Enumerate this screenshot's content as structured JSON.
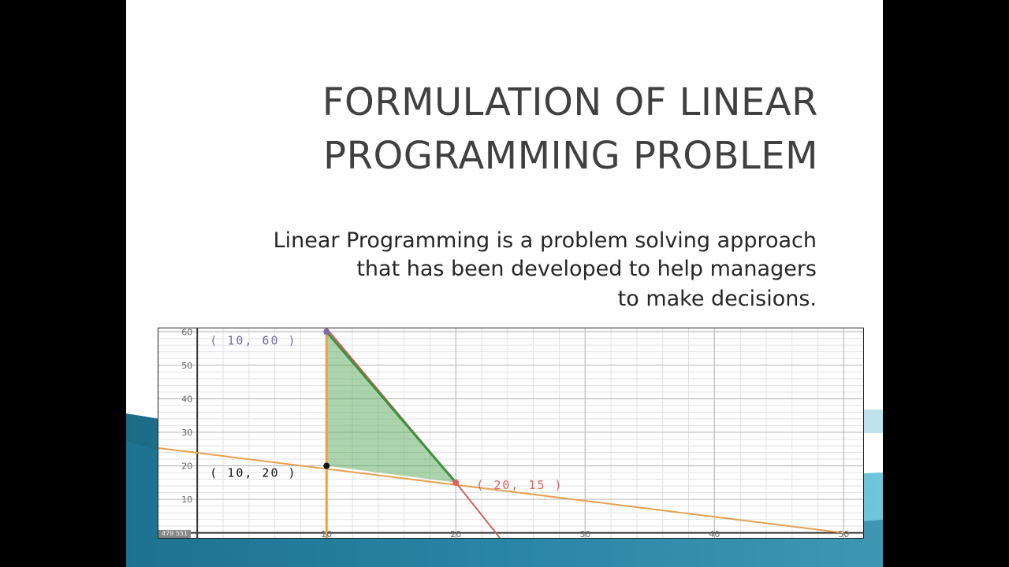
{
  "slide": {
    "title_lines": [
      "FORMULATION OF LINEAR",
      "PROGRAMMING PROBLEM"
    ],
    "body_lines": [
      "Linear Programming is a problem solving approach",
      "that has been developed to help managers",
      "to make decisions."
    ]
  },
  "chart_data": {
    "type": "line",
    "x_ticks": [
      "10",
      "20",
      "30",
      "40",
      "50"
    ],
    "y_ticks": [
      "10",
      "20",
      "30",
      "40",
      "50",
      "60"
    ],
    "xlim": [
      -3,
      51.5
    ],
    "ylim": [
      -1.5,
      61
    ],
    "grid": true,
    "lines": [
      {
        "name": "",
        "points": [
          [
            -3,
            25.3
          ],
          [
            50,
            0
          ]
        ],
        "color": "#e8a050"
      },
      {
        "name": "",
        "points": [
          [
            10,
            61
          ],
          [
            20,
            15
          ],
          [
            23.4,
            -1.5
          ]
        ],
        "color": "#d06060"
      },
      {
        "name": "",
        "points": [
          [
            10,
            -1.5
          ],
          [
            10,
            61
          ]
        ],
        "color": "#f0a040"
      }
    ],
    "feasible_region": {
      "vertices": [
        [
          10,
          60
        ],
        [
          20,
          15
        ],
        [
          10,
          20
        ]
      ],
      "fill": "#5aaa5a"
    },
    "points": [
      {
        "label": "( 10, 60 )",
        "x": 10,
        "y": 60,
        "color": "#7a6bb0"
      },
      {
        "label": "( 10, 20 )",
        "x": 10,
        "y": 20,
        "color": "#111111"
      },
      {
        "label": "( 20, 15 )",
        "x": 20,
        "y": 15,
        "color": "#e06060"
      }
    ],
    "corner_badge": "479 551"
  }
}
